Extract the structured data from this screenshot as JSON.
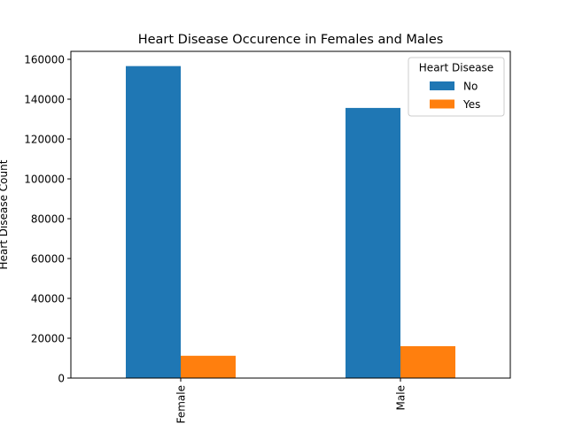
{
  "chart_data": {
    "type": "bar",
    "title": "Heart Disease Occurence in Females and Males",
    "xlabel": "",
    "ylabel": "Heart Disease Count",
    "categories": [
      "Female",
      "Male"
    ],
    "series": [
      {
        "name": "No",
        "values": [
          156600,
          135600
        ],
        "color": "#1f77b4"
      },
      {
        "name": "Yes",
        "values": [
          11200,
          16000
        ],
        "color": "#ff7f0e"
      }
    ],
    "ylim": [
      0,
      164000
    ],
    "yticks": [
      0,
      20000,
      40000,
      60000,
      80000,
      100000,
      120000,
      140000,
      160000
    ],
    "legend": {
      "title": "Heart Disease",
      "position": "top-right"
    },
    "grid": false
  }
}
